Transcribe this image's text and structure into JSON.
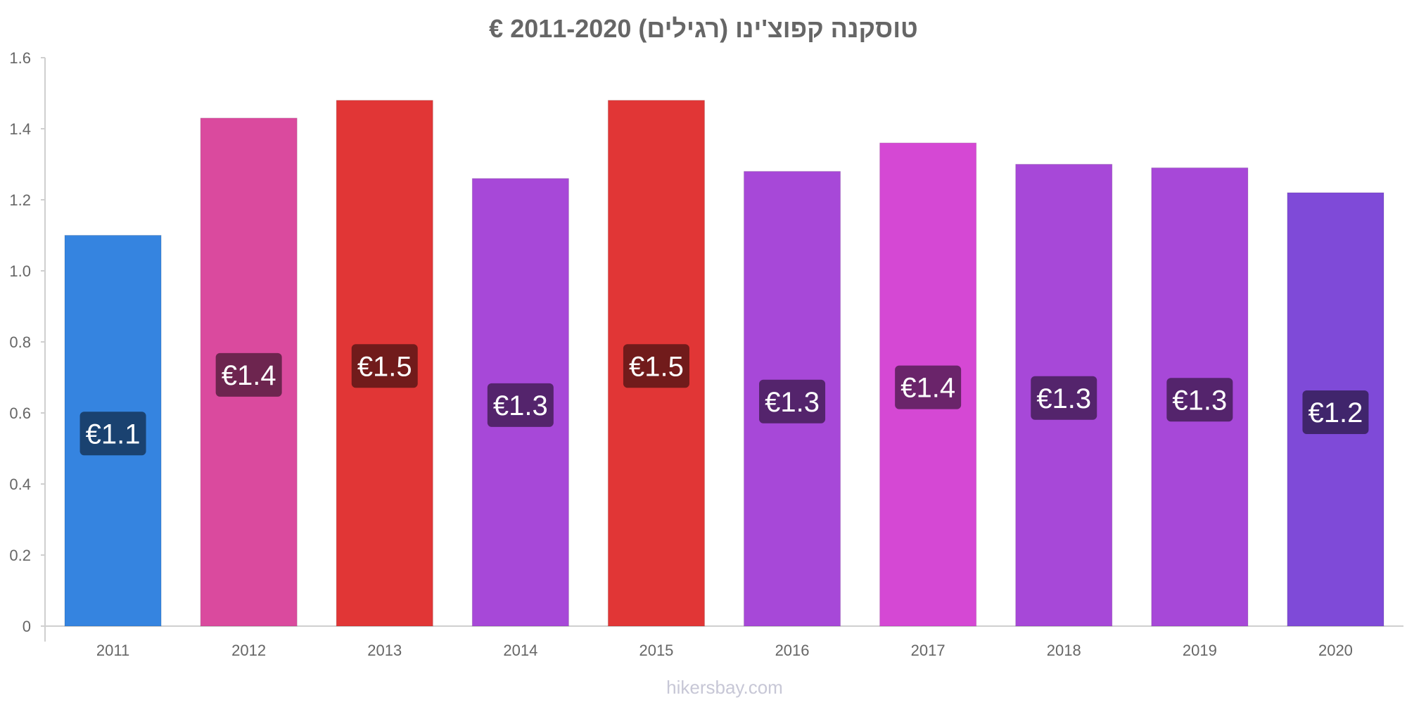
{
  "chart_data": {
    "type": "bar",
    "title": "טוסקנה קפוצ'ינו (רגילים) 2011-2020 €",
    "xlabel": "",
    "ylabel": "",
    "categories": [
      "2011",
      "2012",
      "2013",
      "2014",
      "2015",
      "2016",
      "2017",
      "2018",
      "2019",
      "2020"
    ],
    "values": [
      1.1,
      1.43,
      1.48,
      1.26,
      1.48,
      1.28,
      1.36,
      1.3,
      1.29,
      1.22
    ],
    "data_labels": [
      "€1.1",
      "€1.4",
      "€1.5",
      "€1.3",
      "€1.5",
      "€1.3",
      "€1.4",
      "€1.3",
      "€1.3",
      "€1.2"
    ],
    "bar_colors": [
      "#3584e0",
      "#da4a9e",
      "#e13636",
      "#a748d8",
      "#e13636",
      "#a748d8",
      "#d548d4",
      "#a748d8",
      "#a748d8",
      "#7f4ad8"
    ],
    "label_colors": [
      "#1a4270",
      "#6d254f",
      "#711b1b",
      "#54246c",
      "#711b1b",
      "#54246c",
      "#6a246a",
      "#54246c",
      "#54246c",
      "#40256c"
    ],
    "ylim": [
      0,
      1.6
    ],
    "yticks": [
      0,
      0.2,
      0.4,
      0.6,
      0.8,
      1.0,
      1.2,
      1.4,
      1.6
    ],
    "ytick_labels": [
      "0",
      "0.2",
      "0.4",
      "0.6",
      "0.8",
      "1.0",
      "1.2",
      "1.4",
      "1.6"
    ],
    "grid": false,
    "legend": "none"
  },
  "watermark": "hikersbay.com"
}
